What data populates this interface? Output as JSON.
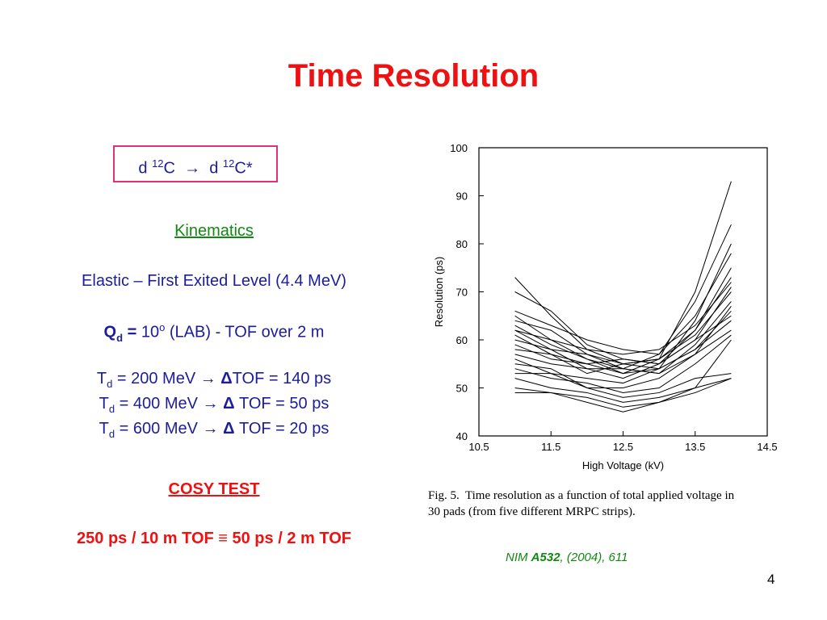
{
  "title": "Time Resolution",
  "reaction": {
    "d1": "d",
    "sup1": "12",
    "c1": "C",
    "arrow": "→",
    "d2": "d",
    "sup2": "12",
    "c2": "C*"
  },
  "kinematics_heading": "Kinematics",
  "level": "Elastic – First Exited Level (4.4 MeV)",
  "angle": {
    "symbol": "Q",
    "sub": "d",
    "eq": " = ",
    "value": "10",
    "sup": "o",
    "rest": " (LAB) - TOF over 2 m"
  },
  "tof_lines": [
    {
      "t": "T",
      "sub": "d",
      "energy": " = 200 MeV ",
      "arrow": "→",
      "delta": "Δ",
      "tof": "TOF = 140 ps"
    },
    {
      "t": "T",
      "sub": "d",
      "energy": " = 400 MeV ",
      "arrow": "→",
      "delta": "Δ",
      "tof": " TOF = 50 ps"
    },
    {
      "t": "T",
      "sub": "d",
      "energy": " = 600 MeV ",
      "arrow": "→",
      "delta": "Δ",
      "tof": " TOF = 20 ps"
    }
  ],
  "cosy_heading": "COSY TEST",
  "equivalence": "250 ps / 10 m TOF ≡ 50 ps / 2 m TOF",
  "chart_data": {
    "type": "line",
    "x_label": "High Voltage (kV)",
    "y_label": "Resolution (ps)",
    "xlim": [
      10.5,
      14.5
    ],
    "xticks": [
      10.5,
      11.5,
      12.5,
      13.5,
      14.5
    ],
    "ylim": [
      40,
      100
    ],
    "yticks": [
      40,
      50,
      60,
      70,
      80,
      90,
      100
    ],
    "x": [
      11,
      11.5,
      12,
      12.5,
      13,
      13.5,
      14
    ],
    "series": [
      {
        "color": "#000000",
        "values": [
          73,
          65,
          58,
          55,
          56,
          70,
          93
        ]
      },
      {
        "color": "#000000",
        "values": [
          65,
          60,
          56,
          54,
          57,
          68,
          84
        ]
      },
      {
        "color": "#000000",
        "values": [
          64,
          62,
          57,
          55,
          54,
          64,
          80
        ]
      },
      {
        "color": "#000000",
        "values": [
          63,
          59,
          56,
          53,
          56,
          62,
          75
        ]
      },
      {
        "color": "#000000",
        "values": [
          62,
          60,
          58,
          57,
          58,
          63,
          72
        ]
      },
      {
        "color": "#000000",
        "values": [
          61,
          57,
          55,
          56,
          55,
          60,
          71
        ]
      },
      {
        "color": "#000000",
        "values": [
          60,
          58,
          54,
          54,
          53,
          59,
          68
        ]
      },
      {
        "color": "#000000",
        "values": [
          59,
          56,
          55,
          53,
          54,
          58,
          66
        ]
      },
      {
        "color": "#000000",
        "values": [
          58,
          57,
          53,
          55,
          56,
          61,
          70
        ]
      },
      {
        "color": "#000000",
        "values": [
          57,
          55,
          54,
          52,
          55,
          60,
          65
        ]
      },
      {
        "color": "#000000",
        "values": [
          56,
          53,
          52,
          51,
          54,
          58,
          64
        ]
      },
      {
        "color": "#000000",
        "values": [
          55,
          54,
          50,
          50,
          52,
          57,
          62
        ]
      },
      {
        "color": "#000000",
        "values": [
          54,
          52,
          51,
          49,
          50,
          55,
          61
        ]
      },
      {
        "color": "#000000",
        "values": [
          53,
          53,
          50,
          48,
          49,
          52,
          53
        ]
      },
      {
        "color": "#000000",
        "values": [
          52,
          50,
          49,
          47,
          48,
          50,
          52
        ]
      },
      {
        "color": "#000000",
        "values": [
          50,
          49,
          48,
          46,
          47,
          49,
          52
        ]
      },
      {
        "color": "#000000",
        "values": [
          49,
          49,
          47,
          45,
          47,
          50,
          60
        ]
      },
      {
        "color": "#000000",
        "values": [
          66,
          63,
          60,
          58,
          57,
          65,
          78
        ]
      },
      {
        "color": "#000000",
        "values": [
          70,
          66,
          59,
          56,
          55,
          62,
          73
        ]
      },
      {
        "color": "#000000",
        "values": [
          62,
          58,
          57,
          54,
          53,
          57,
          67
        ]
      }
    ]
  },
  "caption": [
    "Fig. 5.  Time resolution as a function of total applied voltage in",
    "30 pads (from five different MRPC strips)."
  ],
  "citation": {
    "journal": "NIM ",
    "volume": "A532",
    "rest": ", (2004), 611"
  },
  "page_number": "4"
}
